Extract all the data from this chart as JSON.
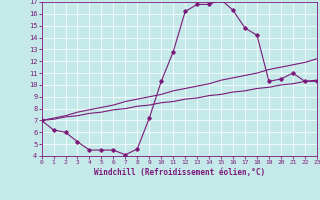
{
  "xlabel": "Windchill (Refroidissement éolien,°C)",
  "background_color": "#c5e8e8",
  "line_color": "#7a1a7a",
  "xlim": [
    0,
    23
  ],
  "ylim": [
    4,
    17
  ],
  "yticks": [
    4,
    5,
    6,
    7,
    8,
    9,
    10,
    11,
    12,
    13,
    14,
    15,
    16,
    17
  ],
  "xticks": [
    0,
    1,
    2,
    3,
    4,
    5,
    6,
    7,
    8,
    9,
    10,
    11,
    12,
    13,
    14,
    15,
    16,
    17,
    18,
    19,
    20,
    21,
    22,
    23
  ],
  "curve_x": [
    0,
    1,
    2,
    3,
    4,
    5,
    6,
    7,
    8,
    9,
    10,
    11,
    12,
    13,
    14,
    15,
    16,
    17,
    18,
    19,
    20,
    21,
    22,
    23
  ],
  "curve_y": [
    7.0,
    6.2,
    6.0,
    5.2,
    4.5,
    4.5,
    4.5,
    4.1,
    4.6,
    7.2,
    10.3,
    12.8,
    16.2,
    16.8,
    16.8,
    17.2,
    16.3,
    14.8,
    14.2,
    10.3,
    10.5,
    11.0,
    10.3,
    10.3
  ],
  "diag1_x": [
    0,
    1,
    2,
    3,
    4,
    5,
    6,
    7,
    8,
    9,
    10,
    11,
    12,
    13,
    14,
    15,
    16,
    17,
    18,
    19,
    20,
    21,
    22,
    23
  ],
  "diag1_y": [
    7.0,
    7.2,
    7.4,
    7.7,
    7.9,
    8.1,
    8.3,
    8.6,
    8.8,
    9.0,
    9.2,
    9.5,
    9.7,
    9.9,
    10.1,
    10.4,
    10.6,
    10.8,
    11.0,
    11.3,
    11.5,
    11.7,
    11.9,
    12.2
  ],
  "diag2_x": [
    0,
    1,
    2,
    3,
    4,
    5,
    6,
    7,
    8,
    9,
    10,
    11,
    12,
    13,
    14,
    15,
    16,
    17,
    18,
    19,
    20,
    21,
    22,
    23
  ],
  "diag2_y": [
    7.0,
    7.1,
    7.3,
    7.4,
    7.6,
    7.7,
    7.9,
    8.0,
    8.2,
    8.3,
    8.5,
    8.6,
    8.8,
    8.9,
    9.1,
    9.2,
    9.4,
    9.5,
    9.7,
    9.8,
    10.0,
    10.1,
    10.3,
    10.4
  ]
}
